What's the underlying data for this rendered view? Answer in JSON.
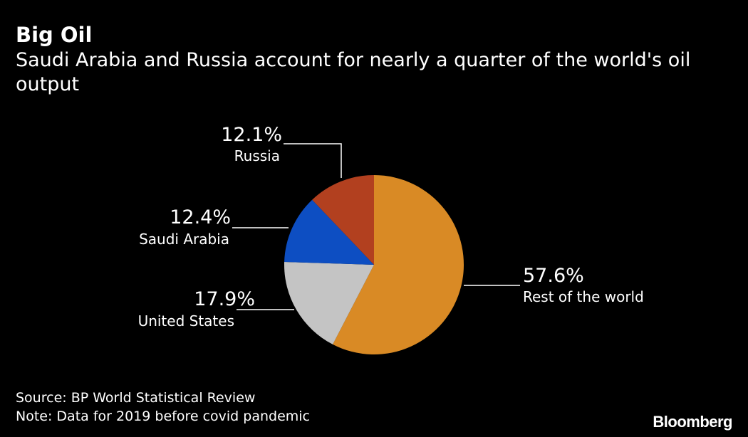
{
  "header": {
    "title": "Big Oil",
    "subtitle": "Saudi Arabia and Russia account for nearly a quarter of the world's oil output"
  },
  "chart_data": {
    "type": "pie",
    "start_angle_deg": 0,
    "direction": "clockwise",
    "slices": [
      {
        "label": "Rest of the world",
        "value": 57.6,
        "value_label": "57.6%",
        "color": "#d98a25"
      },
      {
        "label": "United States",
        "value": 17.9,
        "value_label": "17.9%",
        "color": "#c4c4c4"
      },
      {
        "label": "Saudi Arabia",
        "value": 12.4,
        "value_label": "12.4%",
        "color": "#0d4ec2"
      },
      {
        "label": "Russia",
        "value": 12.1,
        "value_label": "12.1%",
        "color": "#b2401f"
      }
    ]
  },
  "footer": {
    "source": "Source: BP World Statistical Review",
    "note": "Note: Data for 2019 before covid pandemic"
  },
  "brand": "Bloomberg"
}
